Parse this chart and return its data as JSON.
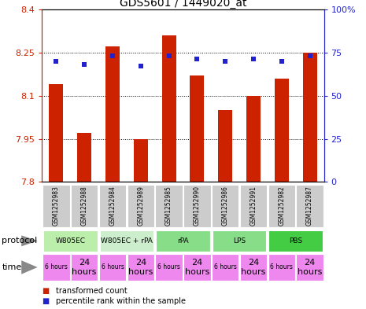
{
  "title": "GDS5601 / 1449020_at",
  "samples": [
    "GSM1252983",
    "GSM1252988",
    "GSM1252984",
    "GSM1252989",
    "GSM1252985",
    "GSM1252990",
    "GSM1252986",
    "GSM1252991",
    "GSM1252982",
    "GSM1252987"
  ],
  "bar_values": [
    8.14,
    7.97,
    8.27,
    7.95,
    8.31,
    8.17,
    8.05,
    8.1,
    8.16,
    8.25
  ],
  "percentile_values": [
    70,
    68,
    73,
    67,
    73,
    71,
    70,
    71,
    70,
    73
  ],
  "y_min": 7.8,
  "y_max": 8.4,
  "y_ticks": [
    7.8,
    7.95,
    8.1,
    8.25,
    8.4
  ],
  "y2_ticks": [
    0,
    25,
    50,
    75,
    100
  ],
  "bar_color": "#cc2200",
  "dot_color": "#2222cc",
  "bar_width": 0.5,
  "protocol_data": [
    {
      "label": "W805EC",
      "start": 0,
      "end": 2,
      "color": "#bbeeaa"
    },
    {
      "label": "W805EC + rPA",
      "start": 2,
      "end": 4,
      "color": "#cceecc"
    },
    {
      "label": "rPA",
      "start": 4,
      "end": 6,
      "color": "#88dd88"
    },
    {
      "label": "LPS",
      "start": 6,
      "end": 8,
      "color": "#88dd88"
    },
    {
      "label": "PBS",
      "start": 8,
      "end": 10,
      "color": "#44cc44"
    }
  ],
  "times": [
    "6 hours",
    "24\nhours",
    "6 hours",
    "24\nhours",
    "6 hours",
    "24\nhours",
    "6 hours",
    "24\nhours",
    "6 hours",
    "24\nhours"
  ],
  "time_large": [
    false,
    true,
    false,
    true,
    false,
    true,
    false,
    true,
    false,
    true
  ],
  "time_color": "#ee88ee",
  "sample_bg": "#cccccc",
  "legend_bar_label": "transformed count",
  "legend_dot_label": "percentile rank within the sample",
  "left_labels": [
    "protocol",
    "time"
  ],
  "arrow_color": "#888888"
}
